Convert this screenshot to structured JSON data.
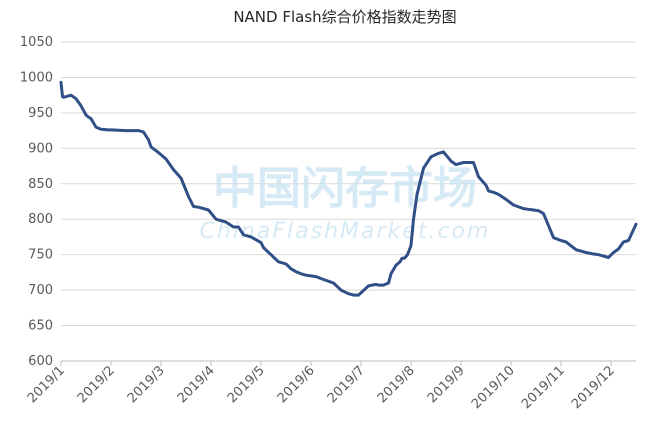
{
  "chart_data": {
    "type": "line",
    "title": "NAND Flash综合价格指数走势图",
    "watermark": {
      "cn": "中国闪存市场",
      "en": "ChinaFlashMarket.com"
    },
    "colors": {
      "series": "#2f4f86",
      "grid": "#d9d9d9",
      "watermark": "#c9e3f2"
    },
    "ylim": [
      600,
      1050
    ],
    "yticks": [
      "600",
      "650",
      "700",
      "750",
      "800",
      "850",
      "900",
      "950",
      "1000",
      "1050"
    ],
    "xlim": [
      0,
      11.5
    ],
    "xticks": [
      "2019/1",
      "2019/2",
      "2019/3",
      "2019/4",
      "2019/5",
      "2019/6",
      "2019/7",
      "2019/8",
      "2019/9",
      "2019/10",
      "2019/11",
      "2019/12"
    ],
    "grid": true,
    "legend": "none",
    "xlabel": "",
    "ylabel": "",
    "series": [
      {
        "x": [
          0,
          0.03,
          0.05,
          0.2,
          0.3,
          0.4,
          0.5,
          0.55,
          0.6,
          0.7,
          0.8,
          0.95,
          1.0,
          1.3,
          1.55,
          1.65,
          1.75,
          1.8,
          1.95,
          2.1,
          2.25,
          2.4,
          2.55,
          2.65,
          2.75,
          2.95,
          3.1,
          3.3,
          3.45,
          3.55,
          3.65,
          3.8,
          4.0,
          4.05,
          4.2,
          4.35,
          4.5,
          4.6,
          4.7,
          4.8,
          4.9,
          5.1,
          5.25,
          5.45,
          5.6,
          5.75,
          5.85,
          5.95,
          6.15,
          6.3,
          6.35,
          6.45,
          6.55,
          6.6,
          6.7,
          6.78,
          6.82,
          6.87,
          6.93,
          7.0,
          7.05,
          7.12,
          7.25,
          7.4,
          7.55,
          7.65,
          7.8,
          7.9,
          8.05,
          8.1,
          8.15,
          8.25,
          8.35,
          8.5,
          8.55,
          8.65,
          8.75,
          8.9,
          9.05,
          9.25,
          9.35,
          9.45,
          9.55,
          9.65,
          9.85,
          10.0,
          10.1,
          10.3,
          10.5,
          10.65,
          10.75,
          10.85,
          10.95,
          11.05,
          11.15,
          11.25,
          11.35,
          11.5
        ],
        "values": [
          993,
          973,
          972,
          975,
          970,
          960,
          947,
          944,
          942,
          930,
          927,
          926,
          926,
          925,
          925,
          923,
          912,
          902,
          894,
          885,
          870,
          858,
          832,
          818,
          817,
          813,
          800,
          796,
          789,
          789,
          778,
          775,
          767,
          760,
          750,
          740,
          737,
          730,
          726,
          723,
          721,
          719,
          715,
          710,
          700,
          695,
          693,
          693,
          706,
          708,
          707,
          707,
          710,
          723,
          735,
          740,
          745,
          745,
          750,
          763,
          800,
          835,
          872,
          888,
          893,
          895,
          882,
          877,
          880,
          880,
          880,
          880,
          860,
          848,
          840,
          838,
          835,
          828,
          820,
          815,
          814,
          813,
          812,
          808,
          774,
          770,
          768,
          757,
          753,
          751,
          750,
          748,
          746,
          753,
          758,
          768,
          770,
          793
        ]
      }
    ]
  }
}
